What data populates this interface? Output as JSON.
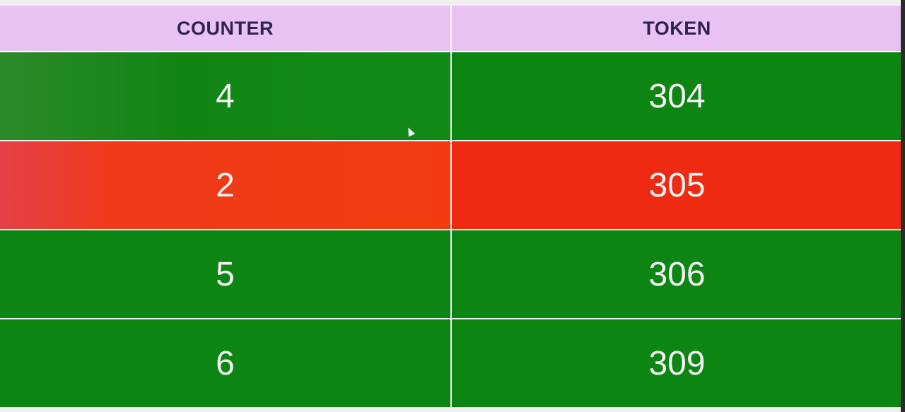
{
  "header": {
    "counter_label": "COUNTER",
    "token_label": "TOKEN"
  },
  "rows": [
    {
      "counter": "4",
      "token": "304",
      "status_color": "#0c8512"
    },
    {
      "counter": "2",
      "token": "305",
      "status_color": "#ee2a12"
    },
    {
      "counter": "5",
      "token": "306",
      "status_color": "#0c8512"
    },
    {
      "counter": "6",
      "token": "309",
      "status_color": "#0c8512"
    }
  ],
  "colors": {
    "header_bg": "#e8c2f2",
    "header_text": "#2f2150",
    "serving": "#0c8512",
    "calling": "#ee2a12"
  }
}
